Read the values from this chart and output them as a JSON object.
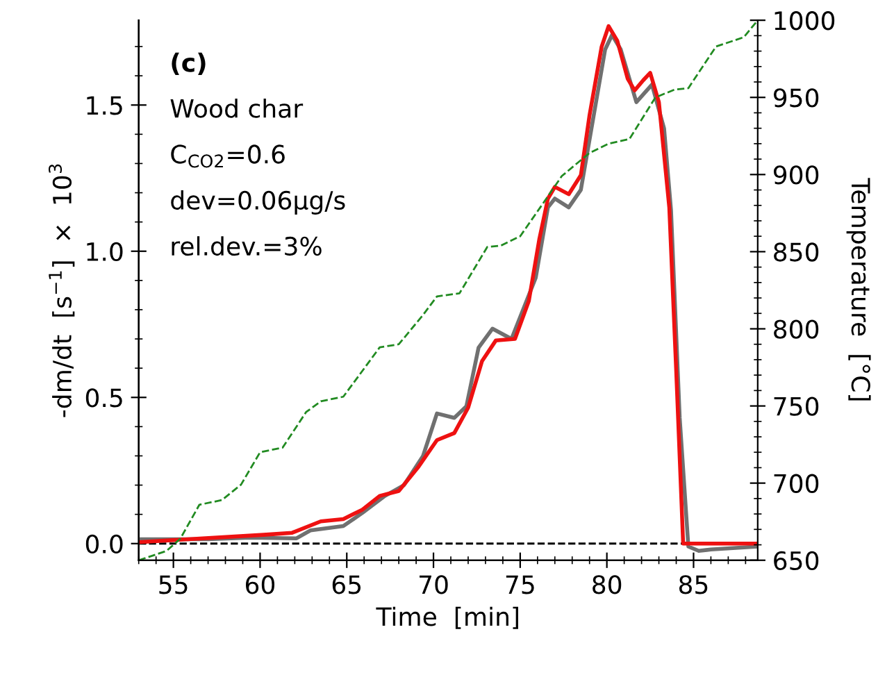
{
  "chart_data": {
    "type": "line",
    "xlabel": "Time  [min]",
    "ylabel": "-dm/dt  [s$^{−1}$]  ×  10$^{3}$",
    "y2label": "Temperature  [°C]",
    "annotations": [
      "(c)",
      "Wood char",
      "C$_{CO2}$=0.6",
      "dev=0.06μg/s",
      "rel.dev.=3%"
    ],
    "series": [
      {
        "color": "#707070",
        "x": [
          53,
          57,
          59.4,
          62.1,
          62.9,
          64.8,
          65.9,
          67.2,
          68.3,
          69.4,
          70.2,
          71.2,
          71.9,
          72.6,
          73.4,
          74.5,
          75.9,
          76.6,
          77.0,
          77.8,
          78.5,
          79.2,
          79.9,
          80.3,
          80.8,
          81.7,
          82.6,
          83.3,
          83.7,
          84.2,
          84.7,
          85.3,
          86.0,
          88.7
        ],
        "values": [
          0.015,
          0.015,
          0.02,
          0.018,
          0.045,
          0.06,
          0.105,
          0.163,
          0.2,
          0.3,
          0.445,
          0.43,
          0.47,
          0.67,
          0.735,
          0.7,
          0.91,
          1.15,
          1.18,
          1.15,
          1.21,
          1.45,
          1.69,
          1.74,
          1.69,
          1.51,
          1.57,
          1.42,
          1.14,
          0.43,
          -0.01,
          -0.025,
          -0.02,
          -0.01
        ]
      },
      {
        "color": "#ee1111",
        "x": [
          53,
          60.2,
          61.85,
          63.5,
          64.8,
          65.9,
          66.9,
          68.0,
          69.1,
          70.2,
          71.2,
          72.0,
          72.8,
          73.6,
          74.7,
          75.5,
          76.1,
          76.6,
          77.0,
          77.8,
          78.5,
          79.0,
          79.7,
          80.1,
          80.6,
          81.2,
          81.6,
          82.1,
          82.5,
          83.0,
          83.6,
          84.0,
          84.4,
          88.7
        ],
        "values": [
          0.005,
          0.03,
          0.037,
          0.076,
          0.084,
          0.116,
          0.163,
          0.18,
          0.26,
          0.354,
          0.378,
          0.465,
          0.624,
          0.695,
          0.7,
          0.83,
          1.04,
          1.18,
          1.22,
          1.195,
          1.26,
          1.465,
          1.7,
          1.77,
          1.72,
          1.59,
          1.55,
          1.585,
          1.61,
          1.51,
          1.15,
          0.59,
          0.0,
          0.0
        ]
      },
      {
        "color": "#228b22",
        "axis": "y2",
        "line_style": "dashed",
        "x": [
          53,
          54.6,
          55.4,
          56.5,
          57.8,
          58.9,
          60.0,
          61.3,
          62.65,
          63.5,
          64.8,
          66.9,
          68.0,
          69.4,
          70.2,
          71.5,
          73.1,
          73.9,
          75.0,
          76.3,
          77.4,
          79.0,
          80.1,
          81.3,
          82.8,
          83.9,
          84.7,
          86.3,
          87.9,
          88.7
        ],
        "values": [
          650,
          656,
          664,
          686,
          689,
          699,
          720,
          723,
          746,
          753,
          756,
          788,
          790,
          809,
          821,
          823,
          853,
          854,
          860,
          881,
          899,
          914,
          920,
          923,
          950,
          955,
          956,
          983,
          989,
          1000
        ]
      }
    ],
    "xlim": [
      53,
      88.7
    ],
    "xticks": [
      55,
      60,
      65,
      70,
      75,
      80,
      85
    ],
    "ylim": [
      -0.057,
      1.79
    ],
    "yticks": [
      {
        "value": 0,
        "label": "0.0"
      },
      {
        "value": 0.5,
        "label": "0.5"
      },
      {
        "value": 1.0,
        "label": "1.0"
      },
      {
        "value": 1.5,
        "label": "1.5"
      }
    ],
    "y2lim": [
      650,
      1000
    ],
    "y2ticks": [
      650,
      700,
      750,
      800,
      850,
      900,
      950,
      1000
    ],
    "ref_lines": [
      {
        "axis": "y",
        "value": 0,
        "color": "#000000",
        "line_style": "dashed"
      }
    ],
    "grid": false,
    "legend": false,
    "marker": "none",
    "line_style": "solid"
  }
}
